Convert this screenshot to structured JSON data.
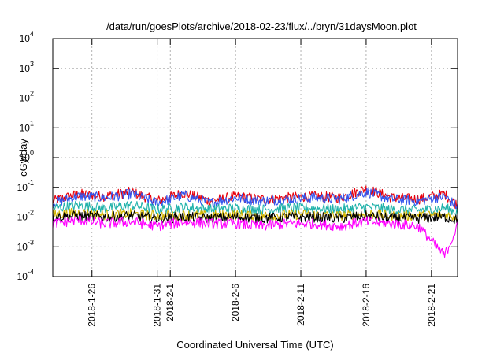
{
  "chart_data": {
    "type": "line",
    "title": "/data/run/goesPlots/archive/2018-02-23/flux/../bryn/31daysMoon.plot",
    "xlabel": "Coordinated Universal Time (UTC)",
    "ylabel": "cGy/day",
    "yscale": "log",
    "ylim": [
      0.0001,
      10000
    ],
    "y_ticks": [
      {
        "base": "10",
        "exp": "-4",
        "value": 0.0001
      },
      {
        "base": "10",
        "exp": "-3",
        "value": 0.001
      },
      {
        "base": "10",
        "exp": "-2",
        "value": 0.01
      },
      {
        "base": "10",
        "exp": "-1",
        "value": 0.1
      },
      {
        "base": "10",
        "exp": "0",
        "value": 1
      },
      {
        "base": "10",
        "exp": "1",
        "value": 10
      },
      {
        "base": "10",
        "exp": "2",
        "value": 100
      },
      {
        "base": "10",
        "exp": "3",
        "value": 1000
      },
      {
        "base": "10",
        "exp": "4",
        "value": 10000
      }
    ],
    "xlim": [
      "2018-01-23",
      "2018-02-23"
    ],
    "x_ticks": [
      "2018-1-26",
      "2018-1-31",
      "2018-2-1",
      "2018-2-6",
      "2018-2-11",
      "2018-2-16",
      "2018-2-21"
    ],
    "x_tick_dates": [
      "2018-01-26",
      "2018-01-31",
      "2018-02-01",
      "2018-02-06",
      "2018-02-11",
      "2018-02-16",
      "2018-02-21"
    ],
    "grid": true,
    "legend": "none",
    "series": [
      {
        "color": "#e8000b",
        "x_dates": [
          "2018-01-23",
          "2018-01-25",
          "2018-01-27",
          "2018-01-29",
          "2018-01-31",
          "2018-02-02",
          "2018-02-04",
          "2018-02-06",
          "2018-02-08",
          "2018-02-10",
          "2018-02-12",
          "2018-02-14",
          "2018-02-16",
          "2018-02-18",
          "2018-02-20",
          "2018-02-22",
          "2018-02-23"
        ],
        "values": [
          0.035,
          0.06,
          0.05,
          0.07,
          0.035,
          0.065,
          0.035,
          0.05,
          0.04,
          0.045,
          0.05,
          0.045,
          0.09,
          0.045,
          0.04,
          0.06,
          0.025
        ]
      },
      {
        "color": "#3355ee",
        "x_dates": [
          "2018-01-23",
          "2018-01-25",
          "2018-01-27",
          "2018-01-29",
          "2018-01-31",
          "2018-02-02",
          "2018-02-04",
          "2018-02-06",
          "2018-02-08",
          "2018-02-10",
          "2018-02-12",
          "2018-02-14",
          "2018-02-16",
          "2018-02-18",
          "2018-02-20",
          "2018-02-22",
          "2018-02-23"
        ],
        "values": [
          0.03,
          0.05,
          0.045,
          0.06,
          0.03,
          0.055,
          0.03,
          0.045,
          0.035,
          0.04,
          0.045,
          0.04,
          0.07,
          0.04,
          0.035,
          0.05,
          0.022
        ]
      },
      {
        "color": "#20b2aa",
        "x_dates": [
          "2018-01-23",
          "2018-01-25",
          "2018-01-27",
          "2018-01-29",
          "2018-01-31",
          "2018-02-02",
          "2018-02-04",
          "2018-02-06",
          "2018-02-08",
          "2018-02-10",
          "2018-02-12",
          "2018-02-14",
          "2018-02-16",
          "2018-02-18",
          "2018-02-20",
          "2018-02-22",
          "2018-02-23"
        ],
        "values": [
          0.02,
          0.025,
          0.02,
          0.025,
          0.018,
          0.022,
          0.018,
          0.02,
          0.018,
          0.02,
          0.02,
          0.018,
          0.022,
          0.018,
          0.017,
          0.02,
          0.015
        ]
      },
      {
        "color": "#d2b400",
        "x_dates": [
          "2018-01-23",
          "2018-01-25",
          "2018-01-27",
          "2018-01-29",
          "2018-01-31",
          "2018-02-02",
          "2018-02-04",
          "2018-02-06",
          "2018-02-08",
          "2018-02-10",
          "2018-02-12",
          "2018-02-14",
          "2018-02-16",
          "2018-02-18",
          "2018-02-20",
          "2018-02-22",
          "2018-02-23"
        ],
        "values": [
          0.012,
          0.014,
          0.012,
          0.013,
          0.011,
          0.012,
          0.011,
          0.012,
          0.011,
          0.012,
          0.012,
          0.011,
          0.013,
          0.011,
          0.011,
          0.012,
          0.01
        ]
      },
      {
        "color": "#000000",
        "x_dates": [
          "2018-01-23",
          "2018-01-25",
          "2018-01-27",
          "2018-01-29",
          "2018-01-31",
          "2018-02-02",
          "2018-02-04",
          "2018-02-06",
          "2018-02-08",
          "2018-02-10",
          "2018-02-12",
          "2018-02-14",
          "2018-02-16",
          "2018-02-18",
          "2018-02-20",
          "2018-02-22",
          "2018-02-23"
        ],
        "values": [
          0.01,
          0.011,
          0.01,
          0.011,
          0.009,
          0.01,
          0.009,
          0.01,
          0.009,
          0.01,
          0.01,
          0.009,
          0.011,
          0.009,
          0.009,
          0.01,
          0.008
        ]
      },
      {
        "color": "#ff00ff",
        "x_dates": [
          "2018-01-23",
          "2018-01-25",
          "2018-01-27",
          "2018-01-29",
          "2018-01-31",
          "2018-02-02",
          "2018-02-04",
          "2018-02-06",
          "2018-02-08",
          "2018-02-10",
          "2018-02-12",
          "2018-02-14",
          "2018-02-16",
          "2018-02-18",
          "2018-02-20",
          "2018-02-22",
          "2018-02-23"
        ],
        "values": [
          0.006,
          0.008,
          0.006,
          0.007,
          0.005,
          0.007,
          0.006,
          0.006,
          0.005,
          0.006,
          0.006,
          0.005,
          0.007,
          0.006,
          0.005,
          0.0005,
          0.005
        ]
      }
    ]
  }
}
